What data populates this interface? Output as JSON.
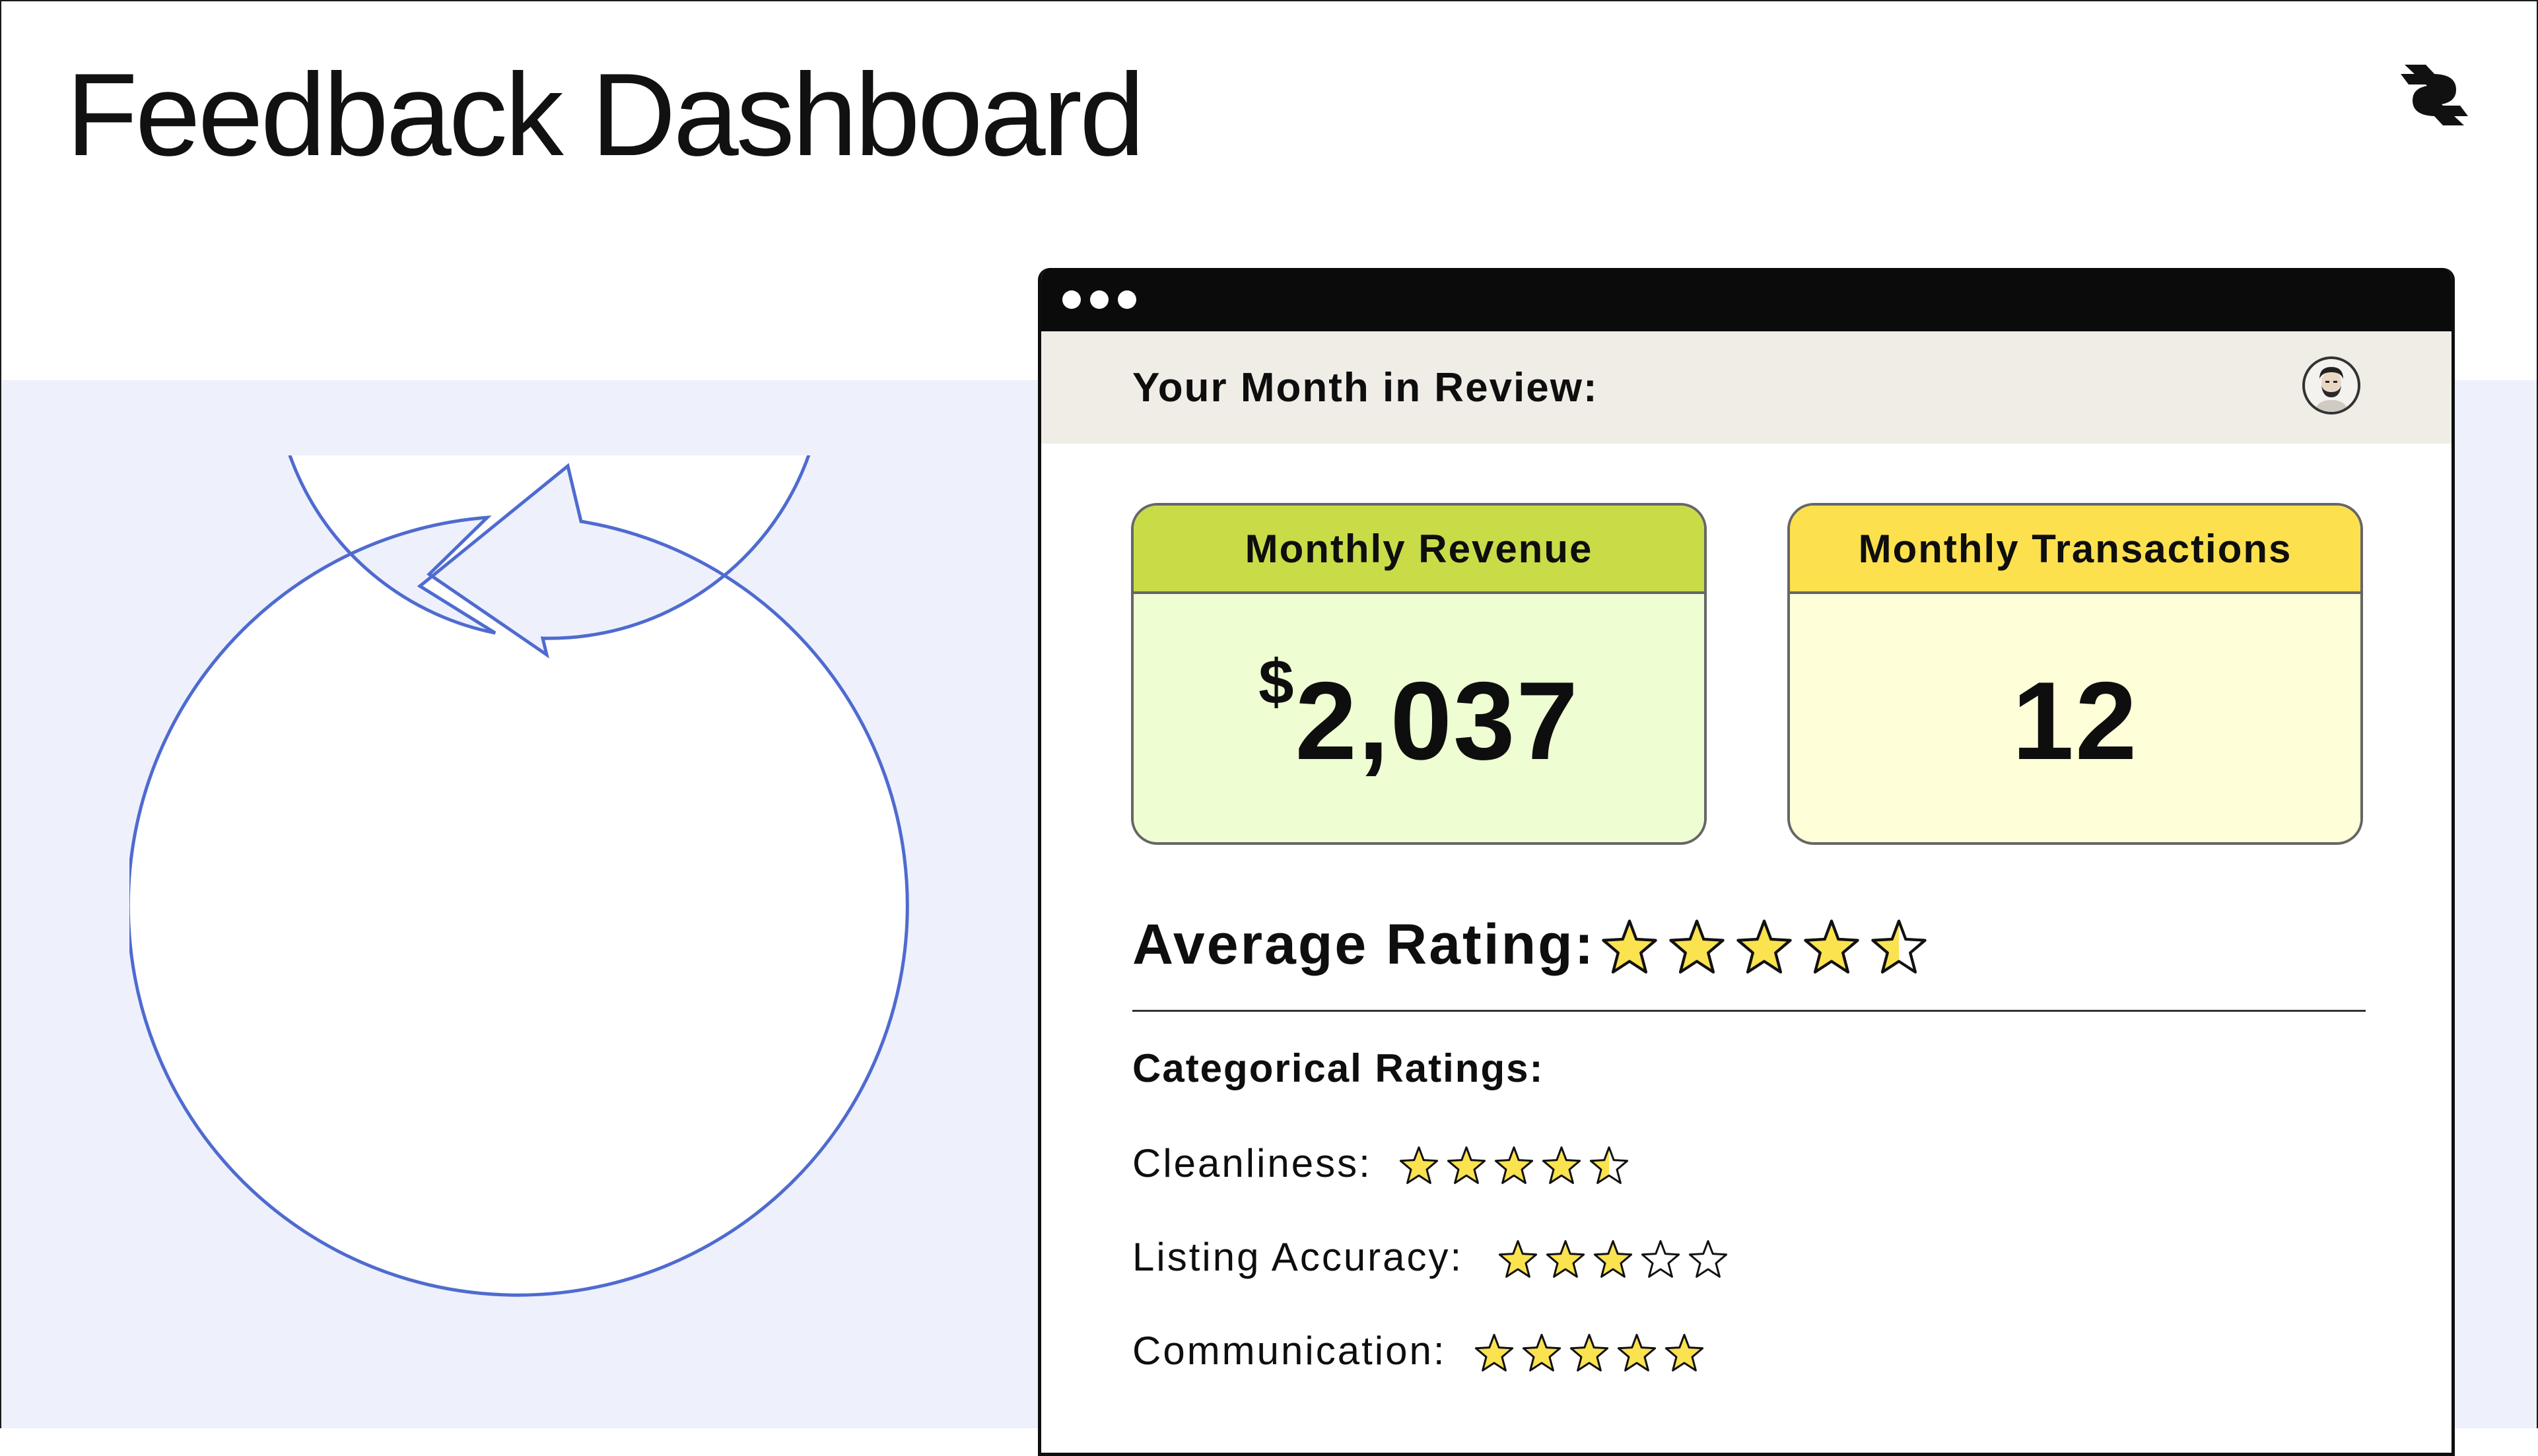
{
  "header": {
    "title": "Feedback Dashboard"
  },
  "icons": {
    "logo": "brand-logo-icon",
    "cycle": "circular-arrow-icon",
    "star": "star-icon"
  },
  "window": {
    "review_title": "Your Month in Review:",
    "cards": {
      "revenue": {
        "label": "Monthly Revenue",
        "currency": "$",
        "value": "2,037"
      },
      "transactions": {
        "label": "Monthly Transactions",
        "value": "12"
      }
    },
    "average_rating": {
      "label": "Average Rating:",
      "stars": 4.5
    },
    "categorical": {
      "title": "Categorical Ratings:",
      "items": [
        {
          "label": "Cleanliness:",
          "stars": 4.5
        },
        {
          "label": "Listing Accuracy:",
          "stars": 3
        },
        {
          "label": "Communication:",
          "stars": 5
        }
      ]
    }
  },
  "colors": {
    "accent_blue": "#4f6bd0",
    "band_bg": "#eef1fc",
    "revenue_head": "#c9dc48",
    "revenue_body": "#effdd2",
    "transactions_head": "#fce04e",
    "transactions_body": "#fefed8",
    "star_fill": "#fbe24f"
  }
}
